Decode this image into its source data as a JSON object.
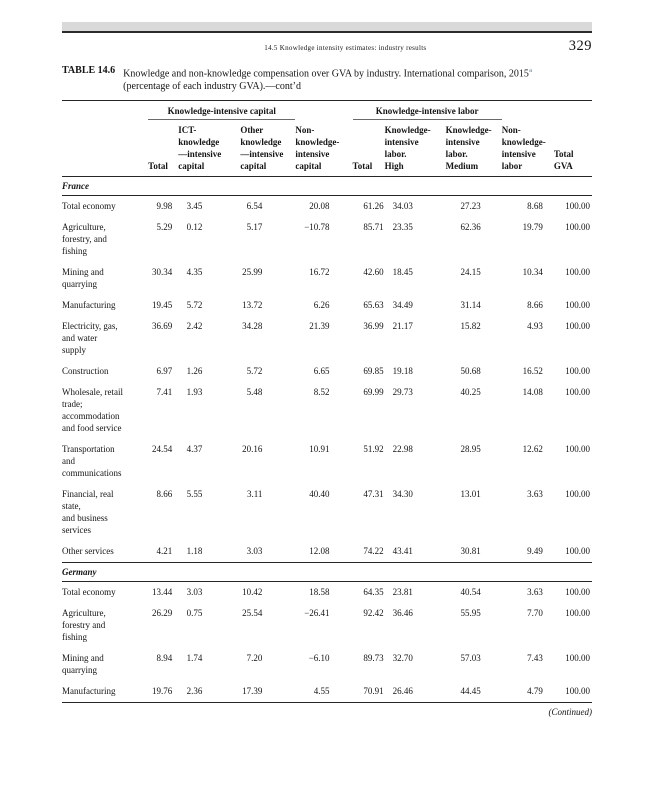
{
  "colors": {
    "header_bar": "#d9d9d9",
    "note_marker": "#7fa8c6"
  },
  "page": {
    "running_head": "14.5 Knowledge intensity estimates: industry results",
    "page_number": "329",
    "continued_note": "(Continued)"
  },
  "table": {
    "label": "TABLE 14.6",
    "caption_line1": "Knowledge and non-knowledge compensation over GVA by industry. International comparison, 2015",
    "caption_note_marker": "a",
    "caption_line2": "(percentage of each industry GVA).—cont’d",
    "col_groups": [
      {
        "label": "Knowledge-intensive capital"
      },
      {
        "label": "Knowledge-intensive labor"
      }
    ],
    "columns": [
      "",
      "Total",
      "ICT-\nknowledge\n—intensive\ncapital",
      "Other\nknowledge\n—intensive\ncapital",
      "Non-\nknowledge-\nintensive\ncapital",
      "Total",
      "Knowledge-\nintensive\nlabor.\nHigh",
      "Knowledge-\nintensive\nlabor.\nMedium",
      "Non-\nknowledge-\nintensive\nlabor",
      "Total\nGVA"
    ],
    "sections": [
      {
        "country": "France",
        "rows": [
          {
            "industry": "Total economy",
            "values": [
              "9.98",
              "3.45",
              "6.54",
              "20.08",
              "61.26",
              "34.03",
              "27.23",
              "8.68",
              "100.00"
            ]
          },
          {
            "industry": "Agriculture,\nforestry, and\nfishing",
            "values": [
              "5.29",
              "0.12",
              "5.17",
              "−10.78",
              "85.71",
              "23.35",
              "62.36",
              "19.79",
              "100.00"
            ]
          },
          {
            "industry": "Mining and\nquarrying",
            "values": [
              "30.34",
              "4.35",
              "25.99",
              "16.72",
              "42.60",
              "18.45",
              "24.15",
              "10.34",
              "100.00"
            ]
          },
          {
            "industry": "Manufacturing",
            "values": [
              "19.45",
              "5.72",
              "13.72",
              "6.26",
              "65.63",
              "34.49",
              "31.14",
              "8.66",
              "100.00"
            ]
          },
          {
            "industry": "Electricity, gas,\nand water\nsupply",
            "values": [
              "36.69",
              "2.42",
              "34.28",
              "21.39",
              "36.99",
              "21.17",
              "15.82",
              "4.93",
              "100.00"
            ]
          },
          {
            "industry": "Construction",
            "values": [
              "6.97",
              "1.26",
              "5.72",
              "6.65",
              "69.85",
              "19.18",
              "50.68",
              "16.52",
              "100.00"
            ]
          },
          {
            "industry": "Wholesale, retail\ntrade;\naccommodation\nand food service",
            "values": [
              "7.41",
              "1.93",
              "5.48",
              "8.52",
              "69.99",
              "29.73",
              "40.25",
              "14.08",
              "100.00"
            ]
          },
          {
            "industry": "Transportation\nand\ncommunications",
            "values": [
              "24.54",
              "4.37",
              "20.16",
              "10.91",
              "51.92",
              "22.98",
              "28.95",
              "12.62",
              "100.00"
            ]
          },
          {
            "industry": "Financial, real\nstate,\nand business\nservices",
            "values": [
              "8.66",
              "5.55",
              "3.11",
              "40.40",
              "47.31",
              "34.30",
              "13.01",
              "3.63",
              "100.00"
            ]
          },
          {
            "industry": "Other services",
            "values": [
              "4.21",
              "1.18",
              "3.03",
              "12.08",
              "74.22",
              "43.41",
              "30.81",
              "9.49",
              "100.00"
            ]
          }
        ]
      },
      {
        "country": "Germany",
        "rows": [
          {
            "industry": "Total economy",
            "values": [
              "13.44",
              "3.03",
              "10.42",
              "18.58",
              "64.35",
              "23.81",
              "40.54",
              "3.63",
              "100.00"
            ]
          },
          {
            "industry": "Agriculture,\nforestry and\nfishing",
            "values": [
              "26.29",
              "0.75",
              "25.54",
              "−26.41",
              "92.42",
              "36.46",
              "55.95",
              "7.70",
              "100.00"
            ]
          },
          {
            "industry": "Mining and\nquarrying",
            "values": [
              "8.94",
              "1.74",
              "7.20",
              "−6.10",
              "89.73",
              "32.70",
              "57.03",
              "7.43",
              "100.00"
            ]
          },
          {
            "industry": "Manufacturing",
            "values": [
              "19.76",
              "2.36",
              "17.39",
              "4.55",
              "70.91",
              "26.46",
              "44.45",
              "4.79",
              "100.00"
            ]
          }
        ]
      }
    ]
  }
}
